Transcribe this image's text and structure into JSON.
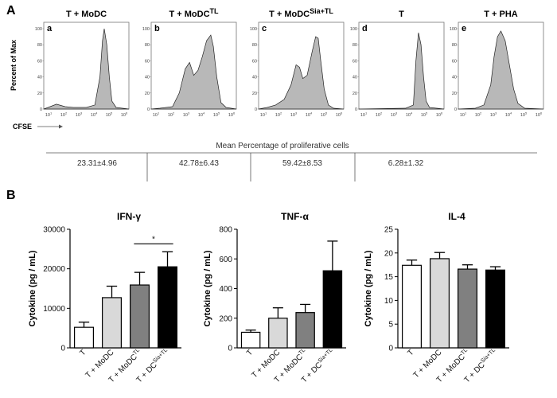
{
  "panel_a": {
    "label": "A",
    "y_axis_label": "Percent of Max",
    "x_axis_label": "CFSE",
    "x_tick_labels": [
      {
        "base": "10",
        "exp": "1"
      },
      {
        "base": "10",
        "exp": "2"
      },
      {
        "base": "10",
        "exp": "3"
      },
      {
        "base": "10",
        "exp": "4"
      },
      {
        "base": "10",
        "exp": "5"
      },
      {
        "base": "10",
        "exp": "6"
      }
    ],
    "y_tick_labels": [
      "0",
      "20",
      "40",
      "60",
      "80",
      "100"
    ],
    "histograms": [
      {
        "letter": "a",
        "title": "T + MoDC",
        "title_sup": "",
        "profile": [
          [
            0,
            0
          ],
          [
            0.05,
            0.02
          ],
          [
            0.15,
            0.06
          ],
          [
            0.25,
            0.03
          ],
          [
            0.35,
            0.02
          ],
          [
            0.5,
            0.02
          ],
          [
            0.6,
            0.05
          ],
          [
            0.66,
            0.4
          ],
          [
            0.69,
            0.85
          ],
          [
            0.71,
            1.0
          ],
          [
            0.74,
            0.8
          ],
          [
            0.77,
            0.4
          ],
          [
            0.8,
            0.1
          ],
          [
            0.85,
            0.02
          ],
          [
            1,
            0
          ]
        ]
      },
      {
        "letter": "b",
        "title": "T + MoDC",
        "title_sup": "TL",
        "profile": [
          [
            0,
            0
          ],
          [
            0.1,
            0.01
          ],
          [
            0.25,
            0.03
          ],
          [
            0.33,
            0.2
          ],
          [
            0.4,
            0.5
          ],
          [
            0.45,
            0.58
          ],
          [
            0.5,
            0.42
          ],
          [
            0.55,
            0.48
          ],
          [
            0.6,
            0.65
          ],
          [
            0.65,
            0.85
          ],
          [
            0.7,
            0.92
          ],
          [
            0.73,
            0.78
          ],
          [
            0.77,
            0.4
          ],
          [
            0.82,
            0.08
          ],
          [
            0.88,
            0.02
          ],
          [
            1,
            0
          ]
        ]
      },
      {
        "letter": "c",
        "title": "T + MoDC",
        "title_sup": "Sia+TL",
        "profile": [
          [
            0,
            0
          ],
          [
            0.1,
            0.02
          ],
          [
            0.2,
            0.05
          ],
          [
            0.3,
            0.12
          ],
          [
            0.38,
            0.3
          ],
          [
            0.44,
            0.55
          ],
          [
            0.48,
            0.52
          ],
          [
            0.52,
            0.38
          ],
          [
            0.57,
            0.42
          ],
          [
            0.63,
            0.72
          ],
          [
            0.67,
            0.9
          ],
          [
            0.7,
            0.88
          ],
          [
            0.73,
            0.6
          ],
          [
            0.77,
            0.25
          ],
          [
            0.82,
            0.05
          ],
          [
            0.88,
            0.01
          ],
          [
            1,
            0
          ]
        ]
      },
      {
        "letter": "d",
        "title": "T",
        "title_sup": "",
        "profile": [
          [
            0,
            0
          ],
          [
            0.55,
            0.01
          ],
          [
            0.64,
            0.05
          ],
          [
            0.67,
            0.6
          ],
          [
            0.7,
            0.95
          ],
          [
            0.73,
            0.8
          ],
          [
            0.76,
            0.4
          ],
          [
            0.79,
            0.1
          ],
          [
            0.83,
            0.02
          ],
          [
            1,
            0
          ]
        ]
      },
      {
        "letter": "e",
        "title": "T + PHA",
        "title_sup": "",
        "profile": [
          [
            0,
            0
          ],
          [
            0.2,
            0.01
          ],
          [
            0.3,
            0.05
          ],
          [
            0.38,
            0.3
          ],
          [
            0.42,
            0.65
          ],
          [
            0.46,
            0.9
          ],
          [
            0.5,
            0.97
          ],
          [
            0.55,
            0.85
          ],
          [
            0.6,
            0.55
          ],
          [
            0.65,
            0.25
          ],
          [
            0.7,
            0.07
          ],
          [
            0.78,
            0.01
          ],
          [
            1,
            0
          ]
        ]
      }
    ],
    "summary": {
      "title": "Mean Percentage of proliferative cells",
      "values": [
        "23.31±4.96",
        "42.78±6.43",
        "59.42±8.53",
        "6.28±1.32"
      ]
    }
  },
  "panel_b": {
    "label": "B",
    "y_axis_label": "Cytokine (pg / mL)",
    "colors": [
      "#ffffff",
      "#d9d9d9",
      "#808080",
      "#000000"
    ]
  },
  "chart_data": [
    {
      "type": "bar",
      "title": "IFN-γ",
      "ylabel": "Cytokine (pg / mL)",
      "ylim": [
        0,
        30000
      ],
      "yticks": [
        0,
        10000,
        20000,
        30000
      ],
      "categories": [
        {
          "base": "T",
          "sup": ""
        },
        {
          "base": "T + MoDC",
          "sup": ""
        },
        {
          "base": "T + MoDC",
          "sup": "TL"
        },
        {
          "base": "T + DC",
          "sup": "Sia+TL"
        }
      ],
      "values": [
        5200,
        12700,
        15900,
        20500
      ],
      "errors": [
        1300,
        2900,
        3200,
        3800
      ],
      "significance": {
        "from": 2,
        "to": 3,
        "label": "*"
      }
    },
    {
      "type": "bar",
      "title": "TNF-α",
      "ylabel": "Cytokine (pg / mL)",
      "ylim": [
        0,
        800
      ],
      "yticks": [
        0,
        200,
        400,
        600,
        800
      ],
      "categories": [
        {
          "base": "T",
          "sup": ""
        },
        {
          "base": "T + MoDC",
          "sup": ""
        },
        {
          "base": "T + MoDC",
          "sup": "TL"
        },
        {
          "base": "T + DC",
          "sup": "Sia+TL"
        }
      ],
      "values": [
        105,
        200,
        238,
        520
      ],
      "errors": [
        15,
        70,
        55,
        200
      ]
    },
    {
      "type": "bar",
      "title": "IL-4",
      "ylabel": "Cytokine (pg / mL)",
      "ylim": [
        0,
        25
      ],
      "yticks": [
        0,
        5,
        10,
        15,
        20,
        25
      ],
      "categories": [
        {
          "base": "T",
          "sup": ""
        },
        {
          "base": "T + MoDC",
          "sup": ""
        },
        {
          "base": "T + MoDC",
          "sup": "TL"
        },
        {
          "base": "T + DC",
          "sup": "Sia+TL"
        }
      ],
      "values": [
        17.4,
        18.8,
        16.6,
        16.4
      ],
      "errors": [
        1.1,
        1.3,
        0.9,
        0.7
      ]
    }
  ]
}
